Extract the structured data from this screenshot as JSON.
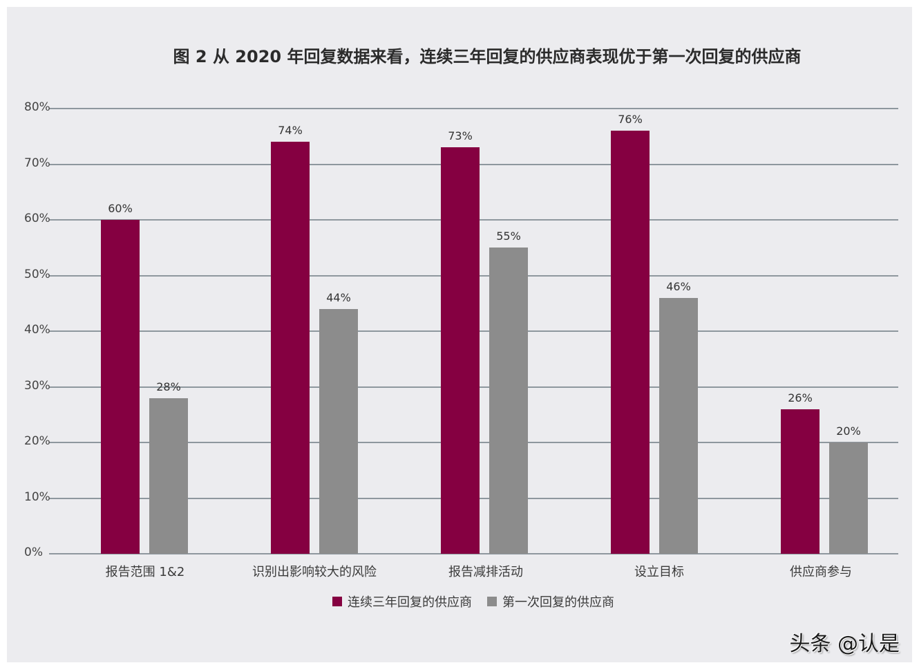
{
  "title": "图 2  从 2020 年回复数据来看，连续三年回复的供应商表现优于第一次回复的供应商",
  "watermark": "头条 @认是",
  "colors": {
    "series_1": "#850041",
    "series_2": "#8c8c8c",
    "background": "#ececef",
    "grid": "#8e979e"
  },
  "legend": [
    {
      "label": "连续三年回复的供应商",
      "color": "#850041"
    },
    {
      "label": "第一次回复的供应商",
      "color": "#8c8c8c"
    }
  ],
  "y_ticks": [
    "0%",
    "10%",
    "20%",
    "30%",
    "40%",
    "50%",
    "60%",
    "70%",
    "80%"
  ],
  "chart_data": {
    "type": "bar",
    "title": "图 2  从 2020 年回复数据来看，连续三年回复的供应商表现优于第一次回复的供应商",
    "xlabel": "",
    "ylabel": "",
    "ylim": [
      0,
      80
    ],
    "y_unit": "%",
    "grid": true,
    "legend_position": "bottom",
    "categories": [
      "报告范围 1&2",
      "识别出影响较大的风险",
      "报告减排活动",
      "设立目标",
      "供应商参与"
    ],
    "series": [
      {
        "name": "连续三年回复的供应商",
        "color": "#850041",
        "values": [
          60,
          74,
          73,
          76,
          26
        ],
        "labels": [
          "60%",
          "74%",
          "73%",
          "76%",
          "26%"
        ]
      },
      {
        "name": "第一次回复的供应商",
        "color": "#8c8c8c",
        "values": [
          28,
          44,
          55,
          46,
          20
        ],
        "labels": [
          "28%",
          "44%",
          "55%",
          "46%",
          "20%"
        ]
      }
    ]
  }
}
